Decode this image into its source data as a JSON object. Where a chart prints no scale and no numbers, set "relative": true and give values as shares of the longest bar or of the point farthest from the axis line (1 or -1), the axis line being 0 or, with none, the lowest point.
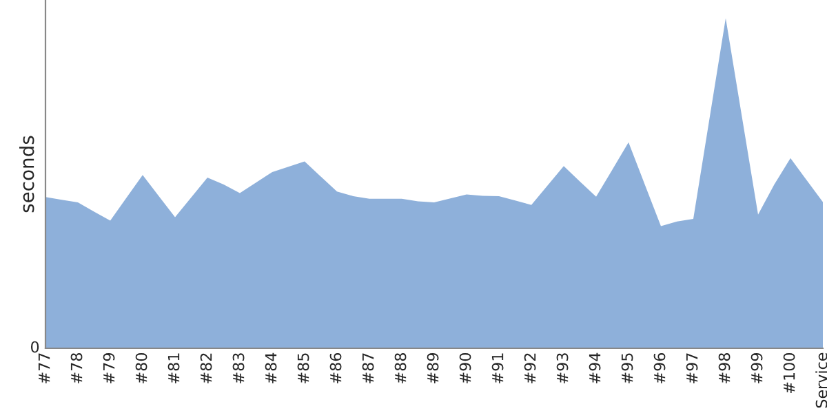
{
  "chart_data": {
    "type": "area",
    "ylabel": "seconds",
    "relative": true,
    "annotations": [
      "0"
    ],
    "grid": false,
    "legend": false,
    "categories": [
      "#77",
      null,
      "#78",
      null,
      "#79",
      null,
      "#80",
      null,
      "#81",
      null,
      "#82",
      null,
      "#83",
      null,
      "#84",
      null,
      "#85",
      null,
      "#86",
      null,
      "#87",
      null,
      "#88",
      null,
      "#89",
      null,
      "#90",
      null,
      "#91",
      null,
      "#92",
      null,
      "#93",
      null,
      "#94",
      null,
      "#95",
      null,
      "#96",
      null,
      "#97",
      null,
      "#98",
      null,
      "#99",
      null,
      "#100",
      null,
      "Service"
    ],
    "series": [
      {
        "color": "#8eb0da",
        "values": [
          0.458,
          0.45,
          0.442,
          0.414,
          0.387,
          0.456,
          0.525,
          0.461,
          0.397,
          0.457,
          0.517,
          0.496,
          0.47,
          0.502,
          0.534,
          0.55,
          0.566,
          0.52,
          0.475,
          0.461,
          0.453,
          0.453,
          0.453,
          0.445,
          0.442,
          0.454,
          0.466,
          0.462,
          0.461,
          0.448,
          0.434,
          0.493,
          0.552,
          0.505,
          0.459,
          0.541,
          0.624,
          0.497,
          0.37,
          0.384,
          0.392,
          0.696,
          1,
          0.702,
          0.405,
          0.496,
          0.576,
          0.509,
          0.443
        ]
      }
    ]
  }
}
